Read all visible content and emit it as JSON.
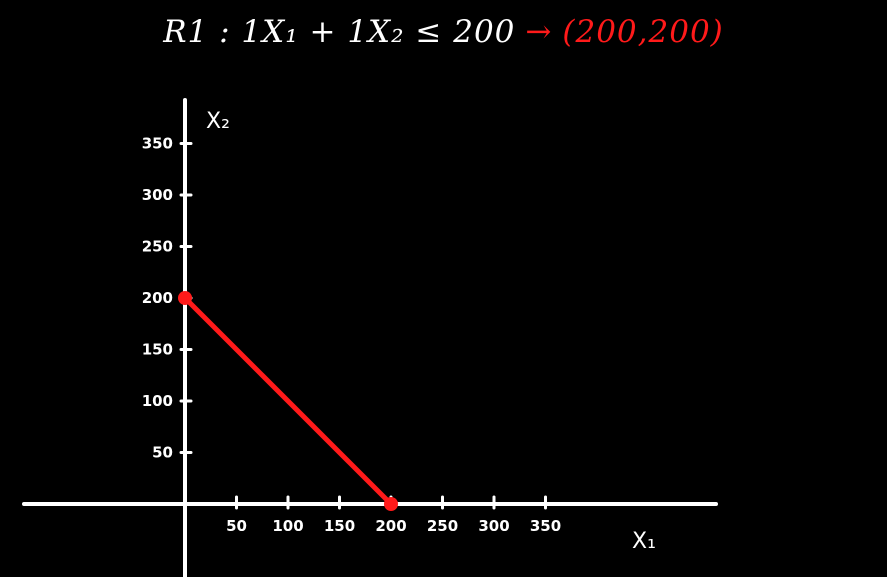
{
  "header": {
    "constraint": "R1 : 1X₁ + 1X₂ ≤ 200",
    "arrow": "→",
    "point": "(200,200)"
  },
  "colors": {
    "background": "#000000",
    "ink": "#ffffff",
    "highlight": "#ff1a1a"
  },
  "chart_data": {
    "type": "line",
    "title": "",
    "xlabel": "X₁",
    "ylabel": "X₂",
    "xlim": [
      0,
      350
    ],
    "ylim": [
      0,
      350
    ],
    "x_ticks": [
      50,
      100,
      150,
      200,
      250,
      300,
      350
    ],
    "y_ticks": [
      50,
      100,
      150,
      200,
      250,
      300,
      350
    ],
    "grid": false,
    "series": [
      {
        "color": "#ff1a1a",
        "points": [
          {
            "x": 0,
            "y": 200
          },
          {
            "x": 200,
            "y": 0
          }
        ]
      }
    ]
  }
}
